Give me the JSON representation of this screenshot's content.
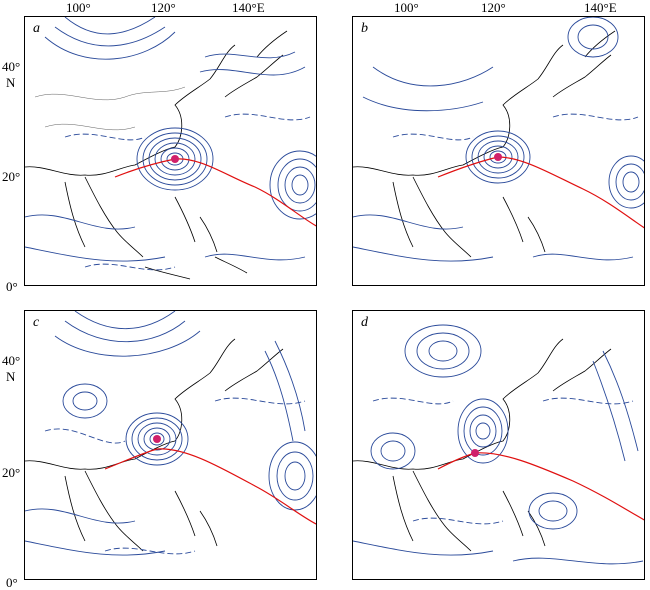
{
  "top_lon_labels": [
    "100°",
    "120°",
    "140°E",
    "100°",
    "120°",
    "140°E"
  ],
  "lat_labels": {
    "left_top": [
      "40°",
      "N",
      "20°",
      "0°"
    ],
    "left_bottom": [
      "40°",
      "N",
      "20°",
      "0°"
    ]
  },
  "panels": [
    {
      "label": "a"
    },
    {
      "label": "b"
    },
    {
      "label": "c"
    },
    {
      "label": "d"
    }
  ],
  "colors": {
    "contour": "#2a4a9a",
    "track": "#e01010",
    "center": "#d0206a",
    "coast": "#000000"
  }
}
